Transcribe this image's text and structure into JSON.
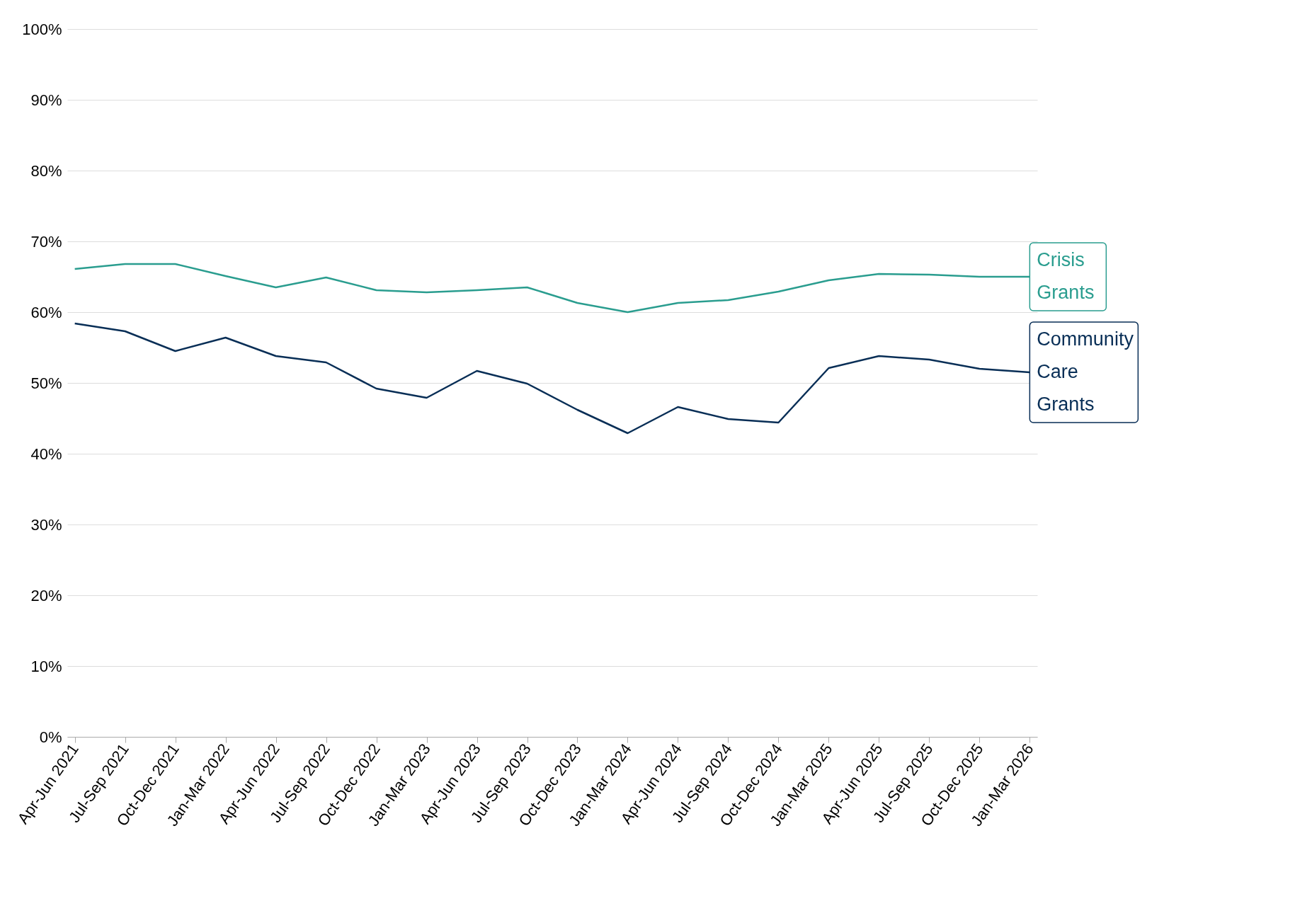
{
  "chart_data": {
    "type": "line",
    "categories": [
      "Apr-Jun 2021",
      "Jul-Sep 2021",
      "Oct-Dec 2021",
      "Jan-Mar 2022",
      "Apr-Jun 2022",
      "Jul-Sep 2022",
      "Oct-Dec 2022",
      "Jan-Mar 2023",
      "Apr-Jun 2023",
      "Jul-Sep 2023",
      "Oct-Dec 2023",
      "Jan-Mar 2024",
      "Apr-Jun 2024",
      "Jul-Sep 2024",
      "Oct-Dec 2024",
      "Jan-Mar 2025",
      "Apr-Jun 2025",
      "Jul-Sep 2025",
      "Oct-Dec 2025",
      "Jan-Mar 2026"
    ],
    "series": [
      {
        "name": "Crisis Grants",
        "color": "#2a9d8f",
        "values": [
          66.1,
          66.8,
          66.8,
          65.1,
          63.5,
          64.9,
          63.1,
          62.8,
          63.1,
          63.5,
          61.3,
          60.0,
          61.3,
          61.7,
          62.9,
          64.5,
          65.4,
          65.3,
          65.0,
          65.0
        ]
      },
      {
        "name": "Community Care Grants",
        "color": "#082e56",
        "values": [
          58.4,
          57.3,
          54.5,
          56.4,
          53.8,
          52.9,
          49.2,
          47.9,
          51.7,
          49.9,
          46.2,
          42.9,
          46.6,
          44.9,
          44.4,
          52.1,
          53.8,
          53.3,
          52.0,
          51.5
        ]
      }
    ],
    "ylim": [
      0,
      100
    ],
    "yticks": [
      {
        "value": 0,
        "label": "0%"
      },
      {
        "value": 10,
        "label": "10%"
      },
      {
        "value": 20,
        "label": "20%"
      },
      {
        "value": 30,
        "label": "30%"
      },
      {
        "value": 40,
        "label": "40%"
      },
      {
        "value": 50,
        "label": "50%"
      },
      {
        "value": 60,
        "label": "60%"
      },
      {
        "value": 70,
        "label": "70%"
      },
      {
        "value": 80,
        "label": "80%"
      },
      {
        "value": 90,
        "label": "90%"
      },
      {
        "value": 100,
        "label": "100%"
      }
    ],
    "grid": "y",
    "legend": false,
    "marker": "none",
    "line_style": "solid"
  }
}
